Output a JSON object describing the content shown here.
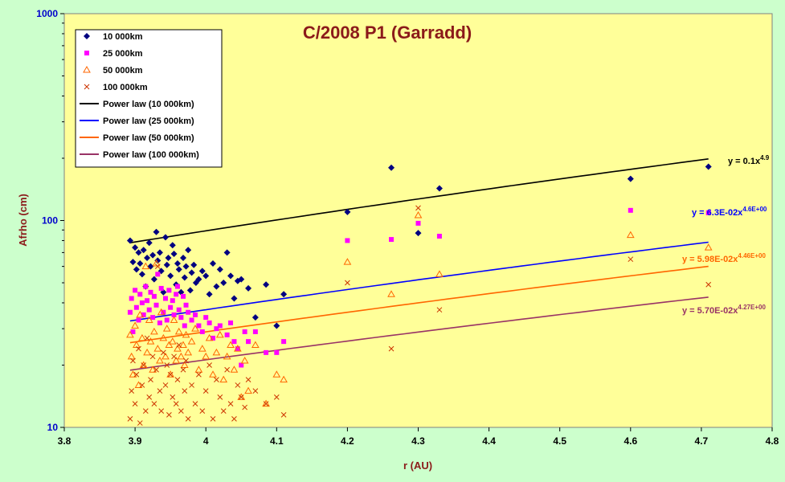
{
  "chart_data": {
    "type": "scatter",
    "title": "C/2008 P1 (Garradd)",
    "xlabel": "r (AU)",
    "ylabel": "Afrho (cm)",
    "xlim": [
      3.8,
      4.8
    ],
    "ylim": [
      10,
      1000
    ],
    "yscale": "log",
    "xticks": [
      "3.8",
      "3.9",
      "4",
      "4.1",
      "4.2",
      "4.3",
      "4.4",
      "4.5",
      "4.6",
      "4.7",
      "4.8"
    ],
    "yticks": [
      "10",
      "100",
      "1000"
    ],
    "legend_position": "top-left",
    "grid": false,
    "series": [
      {
        "name": "10 000km",
        "marker": "diamond",
        "color": "#000080",
        "points": [
          [
            3.893,
            80
          ],
          [
            3.897,
            63
          ],
          [
            3.9,
            74
          ],
          [
            3.902,
            58
          ],
          [
            3.905,
            70
          ],
          [
            3.907,
            62
          ],
          [
            3.91,
            55
          ],
          [
            3.912,
            72
          ],
          [
            3.915,
            48
          ],
          [
            3.917,
            66
          ],
          [
            3.92,
            78
          ],
          [
            3.922,
            60
          ],
          [
            3.925,
            68
          ],
          [
            3.927,
            52
          ],
          [
            3.93,
            88
          ],
          [
            3.932,
            64
          ],
          [
            3.935,
            70
          ],
          [
            3.937,
            57
          ],
          [
            3.94,
            45
          ],
          [
            3.943,
            83
          ],
          [
            3.945,
            61
          ],
          [
            3.947,
            66
          ],
          [
            3.95,
            54
          ],
          [
            3.953,
            76
          ],
          [
            3.955,
            69
          ],
          [
            3.958,
            49
          ],
          [
            3.96,
            62
          ],
          [
            3.962,
            58
          ],
          [
            3.965,
            45
          ],
          [
            3.968,
            66
          ],
          [
            3.97,
            53
          ],
          [
            3.972,
            60
          ],
          [
            3.975,
            72
          ],
          [
            3.978,
            46
          ],
          [
            3.98,
            56
          ],
          [
            3.983,
            61
          ],
          [
            3.986,
            50
          ],
          [
            3.99,
            52
          ],
          [
            3.995,
            57
          ],
          [
            4.0,
            54
          ],
          [
            4.005,
            44
          ],
          [
            4.01,
            62
          ],
          [
            4.015,
            48
          ],
          [
            4.02,
            58
          ],
          [
            4.025,
            50
          ],
          [
            4.03,
            70
          ],
          [
            4.035,
            54
          ],
          [
            4.04,
            42
          ],
          [
            4.045,
            51
          ],
          [
            4.05,
            52
          ],
          [
            4.06,
            47
          ],
          [
            4.07,
            34
          ],
          [
            4.085,
            49
          ],
          [
            4.1,
            31
          ],
          [
            4.11,
            44
          ],
          [
            4.2,
            110
          ],
          [
            4.262,
            180
          ],
          [
            4.3,
            87
          ],
          [
            4.33,
            143
          ],
          [
            4.6,
            159
          ],
          [
            4.71,
            182
          ]
        ]
      },
      {
        "name": "25 000km",
        "marker": "square",
        "color": "#ff00ff",
        "points": [
          [
            3.893,
            36
          ],
          [
            3.895,
            42
          ],
          [
            3.897,
            29
          ],
          [
            3.9,
            46
          ],
          [
            3.902,
            38
          ],
          [
            3.905,
            33
          ],
          [
            3.907,
            44
          ],
          [
            3.91,
            40
          ],
          [
            3.912,
            35
          ],
          [
            3.915,
            48
          ],
          [
            3.917,
            41
          ],
          [
            3.92,
            37
          ],
          [
            3.922,
            45
          ],
          [
            3.925,
            34
          ],
          [
            3.927,
            43
          ],
          [
            3.93,
            39
          ],
          [
            3.932,
            55
          ],
          [
            3.935,
            32
          ],
          [
            3.937,
            47
          ],
          [
            3.94,
            36
          ],
          [
            3.943,
            42
          ],
          [
            3.945,
            33
          ],
          [
            3.948,
            46
          ],
          [
            3.95,
            38
          ],
          [
            3.953,
            41
          ],
          [
            3.955,
            35
          ],
          [
            3.958,
            44
          ],
          [
            3.96,
            48
          ],
          [
            3.962,
            37
          ],
          [
            3.965,
            34
          ],
          [
            3.968,
            43
          ],
          [
            3.97,
            31
          ],
          [
            3.972,
            39
          ],
          [
            3.975,
            36
          ],
          [
            3.98,
            33
          ],
          [
            3.985,
            35
          ],
          [
            3.99,
            31
          ],
          [
            3.995,
            29
          ],
          [
            4.0,
            34
          ],
          [
            4.005,
            32
          ],
          [
            4.01,
            27
          ],
          [
            4.015,
            30
          ],
          [
            4.02,
            31
          ],
          [
            4.03,
            28
          ],
          [
            4.035,
            32
          ],
          [
            4.04,
            26
          ],
          [
            4.045,
            24
          ],
          [
            4.05,
            20
          ],
          [
            4.055,
            29
          ],
          [
            4.06,
            26
          ],
          [
            4.07,
            29
          ],
          [
            4.085,
            23
          ],
          [
            4.1,
            23
          ],
          [
            4.11,
            26
          ],
          [
            4.2,
            80
          ],
          [
            4.262,
            81
          ],
          [
            4.3,
            97
          ],
          [
            4.33,
            84
          ],
          [
            4.6,
            112
          ],
          [
            4.71,
            109
          ]
        ]
      },
      {
        "name": "50 000km",
        "marker": "triangle",
        "color": "#ff6600",
        "points": [
          [
            3.893,
            28
          ],
          [
            3.895,
            22
          ],
          [
            3.897,
            18
          ],
          [
            3.9,
            31
          ],
          [
            3.902,
            25
          ],
          [
            3.905,
            16
          ],
          [
            3.907,
            35
          ],
          [
            3.91,
            27
          ],
          [
            3.912,
            20
          ],
          [
            3.915,
            60
          ],
          [
            3.917,
            23
          ],
          [
            3.92,
            33
          ],
          [
            3.922,
            26
          ],
          [
            3.925,
            19
          ],
          [
            3.927,
            29
          ],
          [
            3.93,
            62
          ],
          [
            3.932,
            24
          ],
          [
            3.935,
            21
          ],
          [
            3.937,
            36
          ],
          [
            3.94,
            27
          ],
          [
            3.943,
            22
          ],
          [
            3.945,
            30
          ],
          [
            3.948,
            25
          ],
          [
            3.95,
            18
          ],
          [
            3.953,
            26
          ],
          [
            3.955,
            33
          ],
          [
            3.958,
            21
          ],
          [
            3.96,
            24
          ],
          [
            3.962,
            29
          ],
          [
            3.965,
            22
          ],
          [
            3.968,
            25
          ],
          [
            3.97,
            20
          ],
          [
            3.972,
            28
          ],
          [
            3.975,
            23
          ],
          [
            3.98,
            26
          ],
          [
            3.985,
            30
          ],
          [
            3.99,
            19
          ],
          [
            3.995,
            24
          ],
          [
            4.0,
            22
          ],
          [
            4.005,
            27
          ],
          [
            4.01,
            18
          ],
          [
            4.015,
            23
          ],
          [
            4.02,
            28
          ],
          [
            4.025,
            17
          ],
          [
            4.03,
            22
          ],
          [
            4.035,
            25
          ],
          [
            4.04,
            19
          ],
          [
            4.045,
            24
          ],
          [
            4.05,
            14
          ],
          [
            4.055,
            21
          ],
          [
            4.06,
            15
          ],
          [
            4.07,
            25
          ],
          [
            4.085,
            13
          ],
          [
            4.1,
            18
          ],
          [
            4.11,
            17
          ],
          [
            4.2,
            63
          ],
          [
            4.262,
            44
          ],
          [
            4.3,
            106
          ],
          [
            4.33,
            55
          ],
          [
            4.6,
            85
          ],
          [
            4.71,
            74
          ]
        ]
      },
      {
        "name": "100 000km",
        "marker": "x",
        "color": "#cc3300",
        "points": [
          [
            3.893,
            11
          ],
          [
            3.895,
            15
          ],
          [
            3.897,
            21
          ],
          [
            3.9,
            13
          ],
          [
            3.902,
            18
          ],
          [
            3.905,
            24
          ],
          [
            3.907,
            10.5
          ],
          [
            3.91,
            16
          ],
          [
            3.912,
            20
          ],
          [
            3.915,
            12
          ],
          [
            3.917,
            27
          ],
          [
            3.92,
            14
          ],
          [
            3.922,
            17
          ],
          [
            3.925,
            22
          ],
          [
            3.927,
            13
          ],
          [
            3.93,
            19
          ],
          [
            3.932,
            60
          ],
          [
            3.935,
            15
          ],
          [
            3.937,
            12
          ],
          [
            3.94,
            23
          ],
          [
            3.943,
            16
          ],
          [
            3.945,
            20
          ],
          [
            3.948,
            11.5
          ],
          [
            3.95,
            18
          ],
          [
            3.953,
            14
          ],
          [
            3.955,
            22
          ],
          [
            3.958,
            13
          ],
          [
            3.96,
            17
          ],
          [
            3.962,
            25
          ],
          [
            3.965,
            12
          ],
          [
            3.968,
            19
          ],
          [
            3.97,
            15
          ],
          [
            3.972,
            21
          ],
          [
            3.975,
            11
          ],
          [
            3.98,
            16
          ],
          [
            3.985,
            13
          ],
          [
            3.99,
            18
          ],
          [
            3.995,
            12
          ],
          [
            4.0,
            15
          ],
          [
            4.005,
            20
          ],
          [
            4.01,
            11
          ],
          [
            4.015,
            17
          ],
          [
            4.02,
            14
          ],
          [
            4.025,
            12
          ],
          [
            4.03,
            19
          ],
          [
            4.035,
            13
          ],
          [
            4.04,
            11
          ],
          [
            4.045,
            16
          ],
          [
            4.05,
            14
          ],
          [
            4.055,
            12.5
          ],
          [
            4.06,
            17
          ],
          [
            4.07,
            15
          ],
          [
            4.085,
            13
          ],
          [
            4.1,
            14
          ],
          [
            4.11,
            11.5
          ],
          [
            4.2,
            50
          ],
          [
            4.262,
            24
          ],
          [
            4.3,
            115
          ],
          [
            4.33,
            37
          ],
          [
            4.6,
            65
          ],
          [
            4.71,
            49
          ]
        ]
      }
    ],
    "fits": [
      {
        "name": "Power law (10 000km)",
        "color": "#000000",
        "a": 0.1,
        "b": 4.9,
        "equation": "y = 0.1x",
        "exponent": "4.9"
      },
      {
        "name": "Power law (25 000km)",
        "color": "#0000ff",
        "a": 0.063,
        "b": 4.6,
        "equation": "y = 6.3E-02x",
        "exponent": "4.6E+00"
      },
      {
        "name": "Power law (50 000km)",
        "color": "#ff6600",
        "a": 0.0598,
        "b": 4.46,
        "equation": "y = 5.98E-02x",
        "exponent": "4.46E+00"
      },
      {
        "name": "Power law (100 000km)",
        "color": "#993366",
        "a": 0.057,
        "b": 4.27,
        "equation": "y = 5.70E-02x",
        "exponent": "4.27E+00"
      }
    ]
  }
}
